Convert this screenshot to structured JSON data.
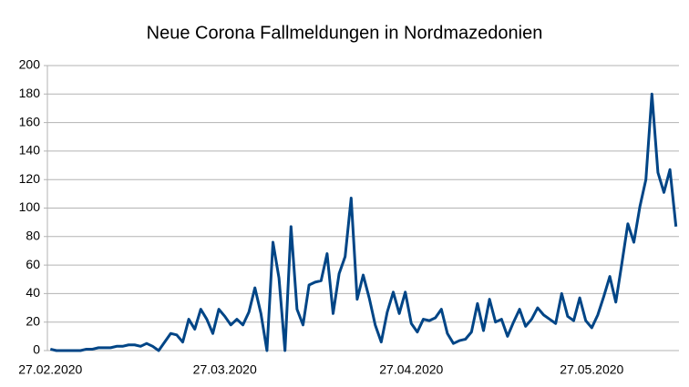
{
  "chart_data": {
    "type": "line",
    "title": "Neue Corona Fallmeldungen in Nordmazedonien",
    "categories": [
      "27.02.2020",
      null,
      null,
      null,
      null,
      null,
      null,
      null,
      null,
      null,
      null,
      null,
      null,
      null,
      null,
      null,
      null,
      null,
      null,
      null,
      null,
      null,
      null,
      null,
      null,
      null,
      null,
      null,
      null,
      "27.03.2020",
      null,
      null,
      null,
      null,
      null,
      null,
      null,
      null,
      null,
      null,
      null,
      null,
      null,
      null,
      null,
      null,
      null,
      null,
      null,
      null,
      null,
      null,
      null,
      null,
      null,
      null,
      null,
      null,
      null,
      null,
      "27.04.2020",
      null,
      null,
      null,
      null,
      null,
      null,
      null,
      null,
      null,
      null,
      null,
      null,
      null,
      null,
      null,
      null,
      null,
      null,
      null,
      null,
      null,
      null,
      null,
      null,
      null,
      null,
      null,
      null,
      null,
      "27.05.2020",
      null,
      null,
      null,
      null,
      null,
      null,
      null,
      null,
      null,
      null,
      null,
      null,
      null,
      null
    ],
    "values": [
      1,
      0,
      0,
      0,
      0,
      0,
      1,
      1,
      2,
      2,
      2,
      3,
      3,
      4,
      4,
      3,
      5,
      3,
      0,
      6,
      12,
      11,
      6,
      22,
      15,
      29,
      22,
      12,
      29,
      24,
      18,
      22,
      18,
      27,
      44,
      26,
      0,
      76,
      51,
      0,
      87,
      29,
      18,
      46,
      48,
      49,
      68,
      26,
      54,
      66,
      107,
      36,
      53,
      37,
      18,
      6,
      27,
      41,
      26,
      41,
      19,
      13,
      22,
      21,
      23,
      29,
      12,
      5,
      7,
      8,
      13,
      33,
      14,
      36,
      20,
      22,
      10,
      20,
      29,
      17,
      22,
      30,
      25,
      22,
      19,
      40,
      24,
      21,
      37,
      21,
      16,
      25,
      38,
      52,
      34,
      61,
      89,
      76,
      101,
      120,
      180,
      125,
      111,
      127,
      87
    ],
    "color": "#004586",
    "ylim": [
      0,
      200
    ],
    "yticks": [
      0,
      20,
      40,
      60,
      80,
      100,
      120,
      140,
      160,
      180,
      200
    ],
    "grid": true
  }
}
